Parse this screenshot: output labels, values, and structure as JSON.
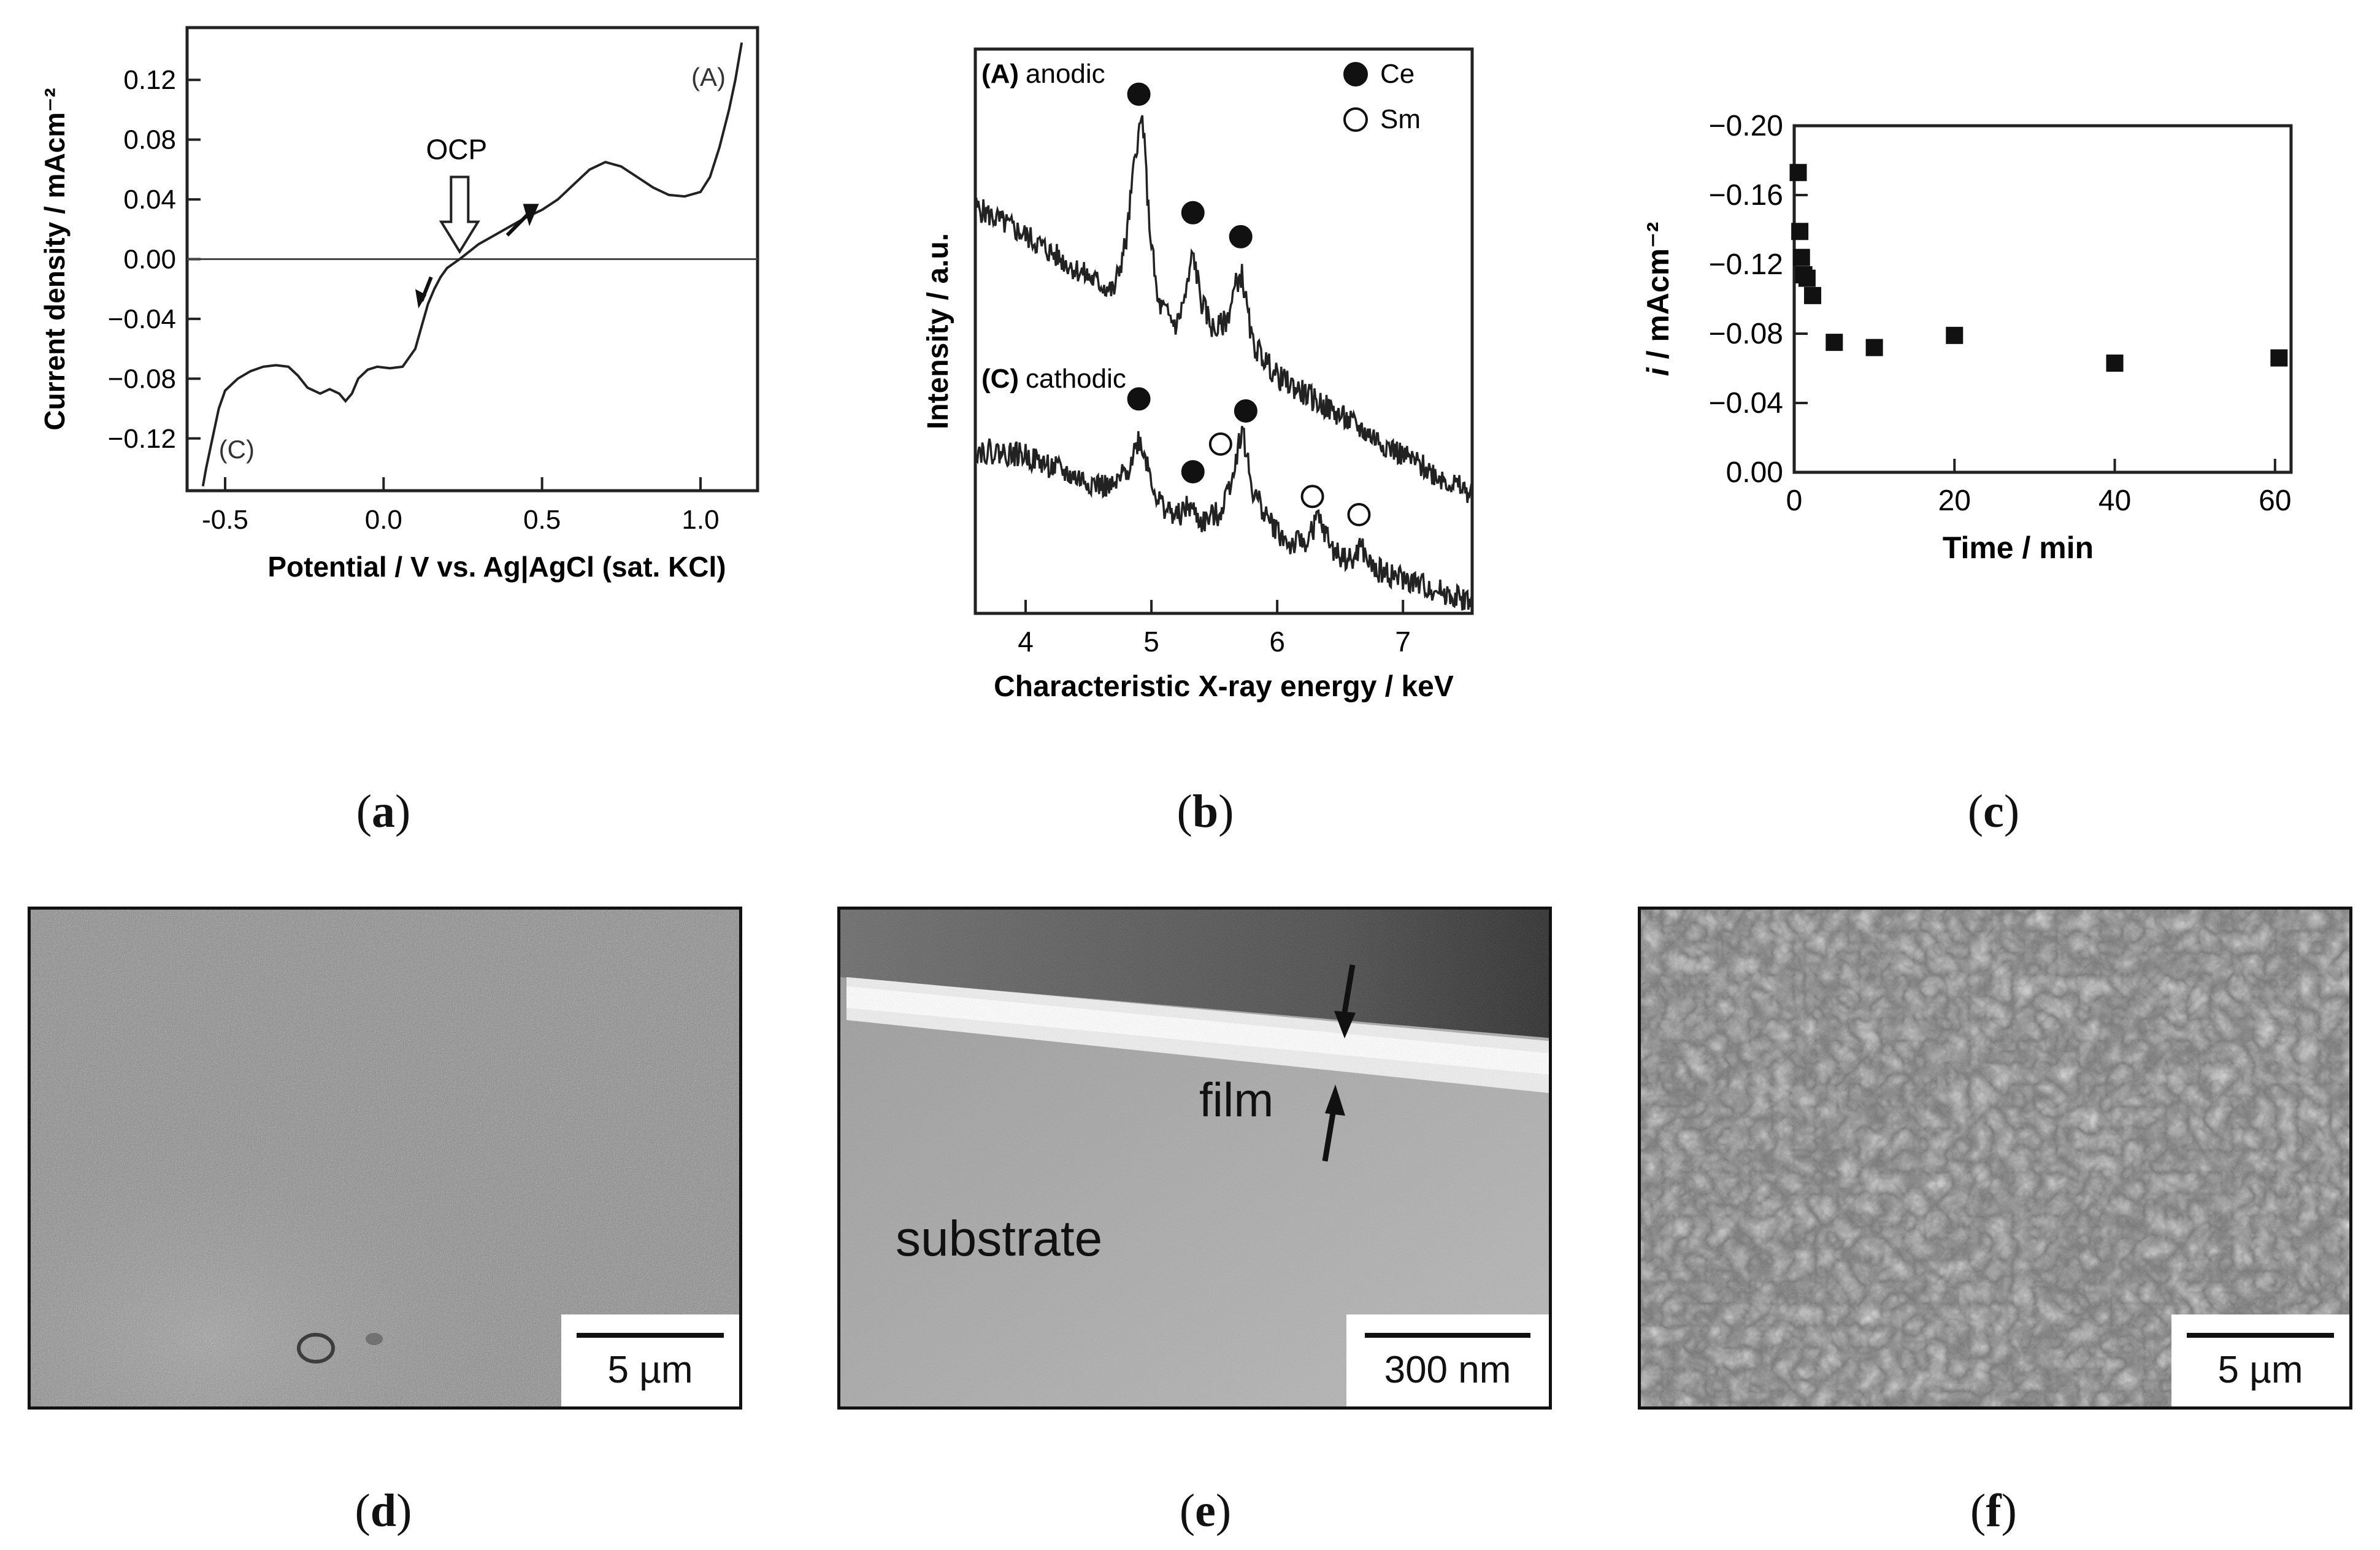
{
  "captions": {
    "a": "a",
    "b": "b",
    "c": "c",
    "d": "d",
    "e": "e",
    "f": "f"
  },
  "chart_data": [
    {
      "panel": "a",
      "type": "line",
      "title": "",
      "xlabel": "Potential / V vs. Ag|AgCl (sat. KCl)",
      "ylabel": "Current density / mAcm⁻²",
      "xlim": [
        -0.62,
        1.18
      ],
      "ylim": [
        -0.155,
        0.155
      ],
      "xticks": [
        -0.5,
        0.0,
        0.5,
        1.0
      ],
      "xtick_labels": [
        "-0.5",
        "0.0",
        "0.5",
        "1.0"
      ],
      "yticks": [
        -0.12,
        -0.08,
        -0.04,
        0.0,
        0.04,
        0.08,
        0.12
      ],
      "ytick_labels": [
        "−0.12",
        "−0.08",
        "−0.04",
        "0.00",
        "0.04",
        "0.08",
        "0.12"
      ],
      "grid": false,
      "zero_line": true,
      "annotations": {
        "A": "(A)",
        "C": "(C)",
        "OCP": "OCP"
      },
      "ocp_potential": 0.24,
      "series": [
        {
          "x": [
            -0.57,
            -0.56,
            -0.54,
            -0.52,
            -0.5,
            -0.46,
            -0.42,
            -0.38,
            -0.34,
            -0.3,
            -0.27,
            -0.24,
            -0.2,
            -0.17,
            -0.14,
            -0.12,
            -0.1,
            -0.08,
            -0.05,
            -0.02,
            0.02,
            0.06,
            0.1,
            0.12,
            0.14,
            0.16,
            0.18,
            0.2,
            0.22,
            0.24,
            0.27,
            0.3,
            0.35,
            0.4,
            0.45,
            0.5,
            0.55,
            0.6,
            0.65,
            0.7,
            0.75,
            0.8,
            0.85,
            0.9,
            0.95,
            1.0,
            1.03,
            1.06,
            1.09,
            1.11,
            1.13
          ],
          "values": [
            -0.152,
            -0.14,
            -0.12,
            -0.1,
            -0.088,
            -0.08,
            -0.075,
            -0.072,
            -0.071,
            -0.072,
            -0.078,
            -0.086,
            -0.09,
            -0.087,
            -0.09,
            -0.095,
            -0.09,
            -0.08,
            -0.074,
            -0.072,
            -0.073,
            -0.072,
            -0.06,
            -0.045,
            -0.03,
            -0.02,
            -0.012,
            -0.006,
            -0.003,
            0.0,
            0.005,
            0.01,
            0.016,
            0.022,
            0.028,
            0.033,
            0.04,
            0.05,
            0.06,
            0.065,
            0.062,
            0.055,
            0.048,
            0.043,
            0.042,
            0.045,
            0.055,
            0.075,
            0.1,
            0.12,
            0.145
          ]
        }
      ]
    },
    {
      "panel": "b",
      "type": "line",
      "title": "",
      "xlabel": "Characteristic X-ray energy / keV",
      "ylabel": "Intensity / a.u.",
      "xlim": [
        3.6,
        7.55
      ],
      "xticks": [
        4,
        5,
        6,
        7
      ],
      "xtick_labels": [
        "4",
        "5",
        "6",
        "7"
      ],
      "y_scale": "arbitrary (no tick labels)",
      "grid": false,
      "legend": {
        "position": "top-right",
        "entries": [
          {
            "marker": "filled-circle",
            "label": "Ce"
          },
          {
            "marker": "open-circle",
            "label": "Sm"
          }
        ]
      },
      "series": [
        {
          "name": "(A) anodic",
          "x": [
            3.6,
            4.0,
            4.4,
            4.7,
            4.8,
            4.88,
            4.93,
            4.98,
            5.05,
            5.2,
            5.28,
            5.33,
            5.4,
            5.5,
            5.6,
            5.68,
            5.72,
            5.8,
            6.0,
            6.5,
            7.0,
            7.55
          ],
          "values": [
            0.72,
            0.67,
            0.61,
            0.57,
            0.66,
            0.83,
            0.88,
            0.7,
            0.55,
            0.51,
            0.57,
            0.64,
            0.55,
            0.5,
            0.52,
            0.59,
            0.6,
            0.48,
            0.42,
            0.35,
            0.28,
            0.21
          ],
          "peaks": [
            {
              "x": 4.9,
              "element": "Ce"
            },
            {
              "x": 5.33,
              "element": "Ce"
            },
            {
              "x": 5.71,
              "element": "Ce"
            }
          ]
        },
        {
          "name": "(C) cathodic",
          "x": [
            3.6,
            4.0,
            4.4,
            4.7,
            4.82,
            4.9,
            4.95,
            5.05,
            5.2,
            5.3,
            5.4,
            5.55,
            5.65,
            5.72,
            5.8,
            5.95,
            6.1,
            6.25,
            6.32,
            6.45,
            6.6,
            6.66,
            6.75,
            7.0,
            7.55
          ],
          "values": [
            0.29,
            0.28,
            0.24,
            0.22,
            0.26,
            0.31,
            0.28,
            0.2,
            0.17,
            0.19,
            0.16,
            0.18,
            0.25,
            0.33,
            0.22,
            0.16,
            0.12,
            0.13,
            0.17,
            0.11,
            0.09,
            0.12,
            0.08,
            0.06,
            0.02
          ],
          "peaks": [
            {
              "x": 4.9,
              "element": "Ce"
            },
            {
              "x": 5.33,
              "element": "Ce"
            },
            {
              "x": 5.55,
              "element": "Sm"
            },
            {
              "x": 5.75,
              "element": "Ce"
            },
            {
              "x": 6.28,
              "element": "Sm"
            },
            {
              "x": 6.65,
              "element": "Sm"
            }
          ]
        }
      ],
      "annotations": {
        "A_prefix": "(A)",
        "A": "anodic",
        "C_prefix": "(C)",
        "C": "cathodic"
      }
    },
    {
      "panel": "c",
      "type": "scatter",
      "title": "",
      "xlabel": "Time / min",
      "ylabel_italic": "i",
      "ylabel": " / mAcm⁻²",
      "xlim": [
        0,
        62
      ],
      "ylim": [
        0.0,
        0.2
      ],
      "y_inverted": true,
      "xticks": [
        0,
        20,
        40,
        60
      ],
      "xtick_labels": [
        "0",
        "20",
        "40",
        "60"
      ],
      "yticks": [
        0.0,
        0.04,
        0.08,
        0.12,
        0.16,
        0.2
      ],
      "ytick_labels": [
        "0.00",
        "−0.04",
        "−0.08",
        "−0.12",
        "−0.16",
        "−0.20"
      ],
      "grid": false,
      "series": [
        {
          "x": [
            0.5,
            0.7,
            0.9,
            1.2,
            1.6,
            2.3,
            5,
            10,
            20,
            40,
            60.5
          ],
          "values": [
            0.173,
            0.139,
            0.124,
            0.114,
            0.112,
            0.102,
            0.075,
            0.072,
            0.079,
            0.063,
            0.066
          ]
        }
      ]
    }
  ],
  "micrographs": {
    "d": {
      "scale": "5 µm"
    },
    "e": {
      "scale": "300 nm",
      "label_film": "film",
      "label_substrate": "substrate"
    },
    "f": {
      "scale": "5 µm"
    }
  }
}
